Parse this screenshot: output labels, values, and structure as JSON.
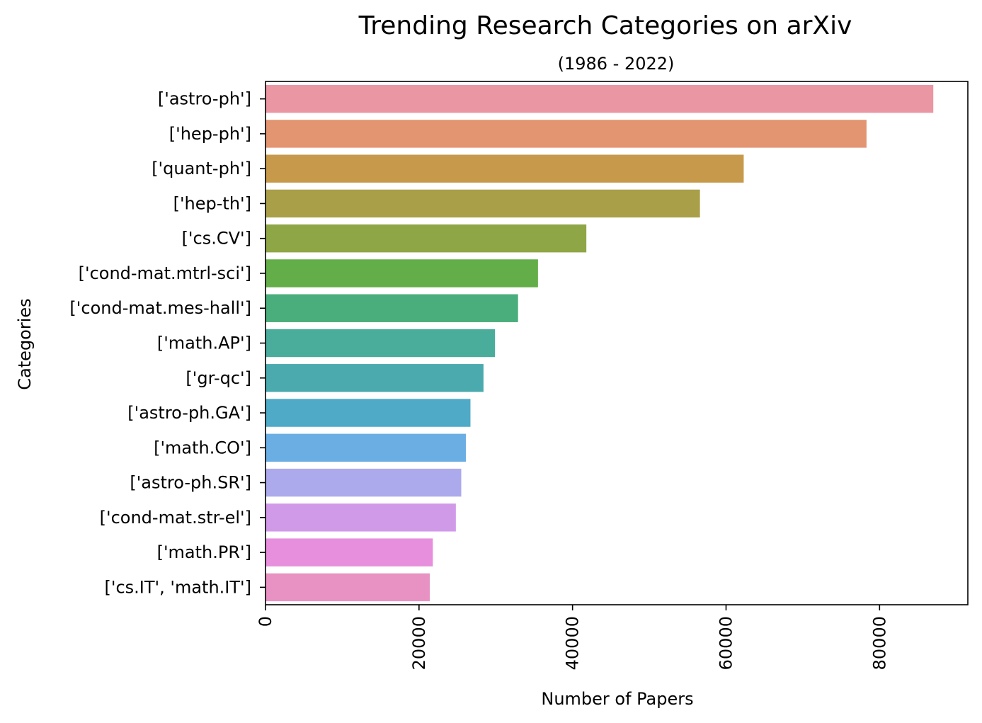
{
  "chart_data": {
    "type": "bar",
    "orientation": "horizontal",
    "title": "Trending Research Categories on arXiv",
    "subtitle": "(1986 - 2022)",
    "xlabel": "Number of Papers",
    "ylabel": "Categories",
    "xlim": [
      0,
      91500
    ],
    "x_ticks": [
      0,
      20000,
      40000,
      60000,
      80000
    ],
    "x_tick_labels": [
      "0",
      "20000",
      "40000",
      "60000",
      "80000"
    ],
    "grid": false,
    "legend": "none",
    "categories": [
      "['astro-ph']",
      "['hep-ph']",
      "['quant-ph']",
      "['hep-th']",
      "['cs.CV']",
      "['cond-mat.mtrl-sci']",
      "['cond-mat.mes-hall']",
      "['math.AP']",
      "['gr-qc']",
      "['astro-ph.GA']",
      "['math.CO']",
      "['astro-ph.SR']",
      "['cond-mat.str-el']",
      "['math.PR']",
      "['cs.IT', 'math.IT']"
    ],
    "values": [
      87000,
      78300,
      62300,
      56600,
      41800,
      35500,
      32900,
      29900,
      28400,
      26700,
      26100,
      25500,
      24800,
      21800,
      21400
    ],
    "colors": [
      "#ea96a3",
      "#e39572",
      "#c69a4a",
      "#aa9f49",
      "#8fa646",
      "#63ae48",
      "#4aad7c",
      "#4aac9b",
      "#4aaaae",
      "#4eaac6",
      "#6aaee3",
      "#aca9ec",
      "#d19ae8",
      "#e78fdc",
      "#e891c3"
    ]
  }
}
